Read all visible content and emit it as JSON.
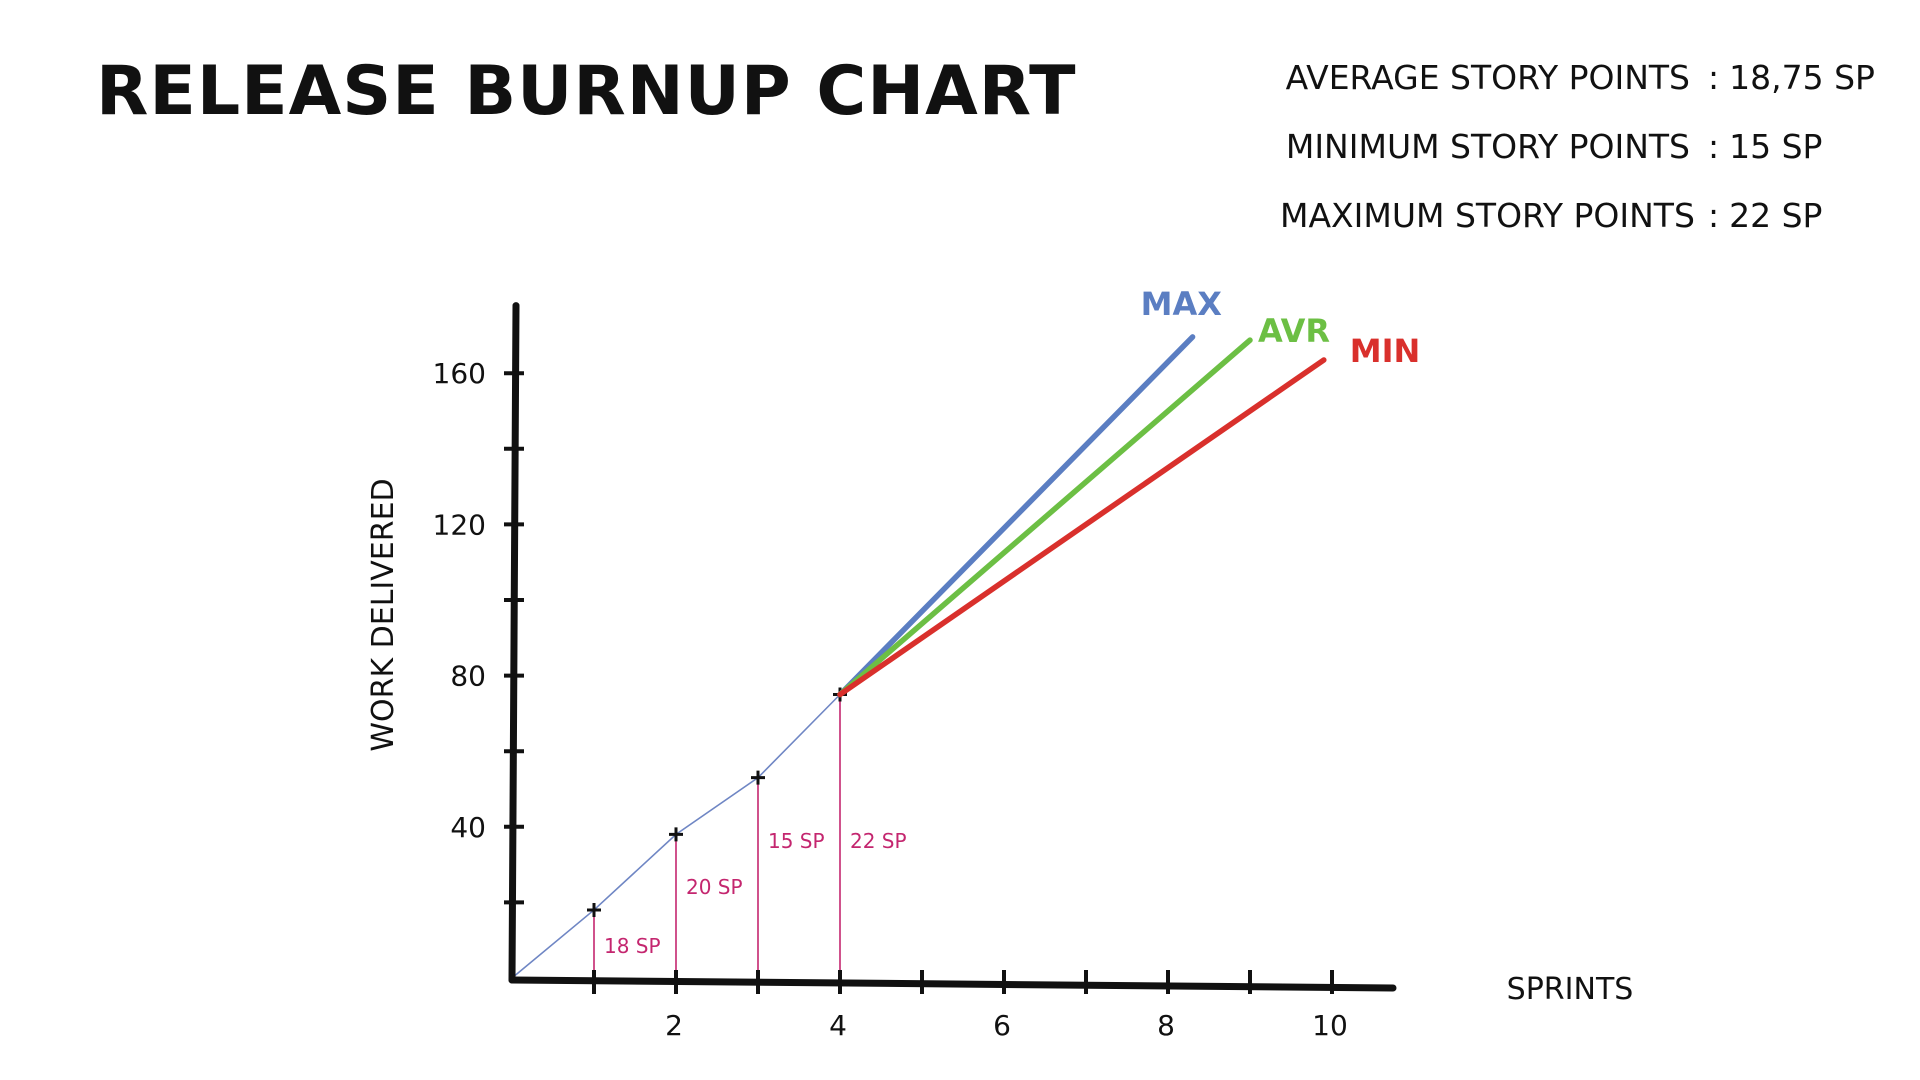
{
  "chart_data": {
    "type": "line",
    "title": "RELEASE BURNUP CHART",
    "xlabel": "SPRINTS",
    "ylabel": "WORK DELIVERED",
    "xlim": [
      0,
      10.5
    ],
    "ylim": [
      0,
      180
    ],
    "x_ticks": [
      1,
      2,
      3,
      4,
      5,
      6,
      7,
      8,
      9,
      10
    ],
    "x_tick_labels": [
      "",
      "2",
      "",
      "4",
      "",
      "6",
      "",
      "8",
      "",
      "10"
    ],
    "y_ticks": [
      20,
      40,
      60,
      80,
      100,
      120,
      140,
      160
    ],
    "y_tick_labels": [
      "",
      "40",
      "",
      "80",
      "",
      "120",
      "",
      "160"
    ],
    "actual": {
      "x": [
        0,
        1,
        2,
        3,
        4
      ],
      "y": [
        0,
        18,
        38,
        53,
        75
      ],
      "sprint_labels": [
        "18 SP",
        "20 SP",
        "15 SP",
        "22 SP"
      ],
      "color": "#6f86c4"
    },
    "series": [
      {
        "name": "MAX",
        "color": "#5b7ec2",
        "x": [
          4,
          8.3
        ],
        "y": [
          75,
          169.6
        ]
      },
      {
        "name": "AVR",
        "color": "#6cbf44",
        "x": [
          4,
          9
        ],
        "y": [
          75,
          168.75
        ]
      },
      {
        "name": "MIN",
        "color": "#d9302c",
        "x": [
          4,
          9.9
        ],
        "y": [
          75,
          163.5
        ]
      }
    ],
    "drop_line_color": "#c4266f"
  },
  "stats": [
    {
      "label": "AVERAGE STORY POINTS",
      "value": "18,75 SP"
    },
    {
      "label": "MINIMUM STORY POINTS",
      "value": "15 SP"
    },
    {
      "label": "MAXIMUM STORY POINTS",
      "value": "22 SP"
    }
  ],
  "stat_separator": ":"
}
